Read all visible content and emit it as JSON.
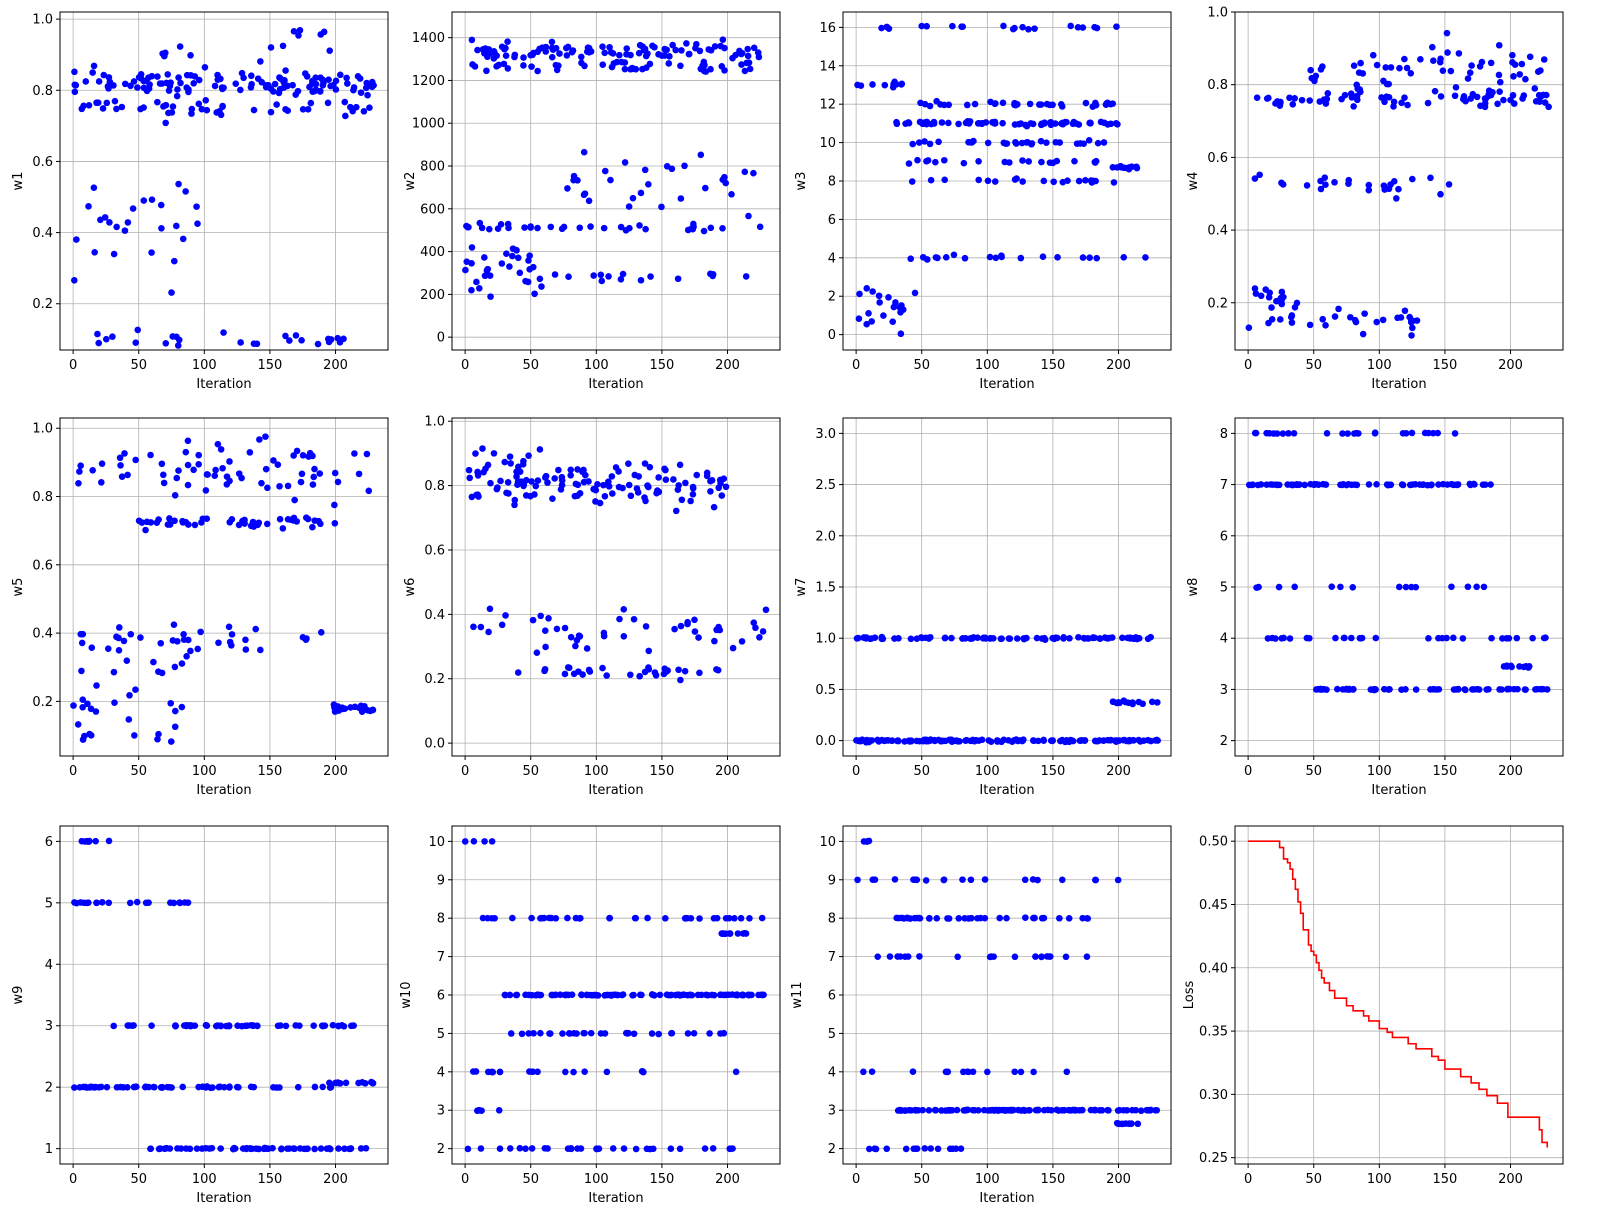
{
  "figure": {
    "rows": 3,
    "cols": 4,
    "point_color": "#0000ff",
    "line_color": "#ff0000",
    "grid_color": "#b0b0b0",
    "grid": true
  },
  "chart_data": [
    {
      "type": "scatter",
      "xlabel": "Iteration",
      "ylabel": "w1",
      "xlim": [
        -10,
        240
      ],
      "ylim": [
        0.07,
        1.02
      ],
      "xticks": [
        0,
        50,
        100,
        150,
        200
      ],
      "yticks": [
        0.2,
        0.4,
        0.6,
        0.8,
        1.0
      ],
      "ytick_labels": [
        "0.2",
        "0.4",
        "0.6",
        "0.8",
        "1.0"
      ],
      "clusters": [
        {
          "x_range": [
            0,
            230
          ],
          "y_center": 0.82,
          "y_spread": 0.015,
          "count": 110
        },
        {
          "x_range": [
            5,
            230
          ],
          "y_center": 0.75,
          "y_spread": 0.01,
          "count": 45
        },
        {
          "x_range": [
            10,
            200
          ],
          "y_center": 0.88,
          "y_spread": 0.04,
          "count": 20
        },
        {
          "x_range": [
            0,
            95
          ],
          "y_center": 0.45,
          "y_spread": 0.12,
          "count": 28
        },
        {
          "x_range": [
            0,
            220
          ],
          "y_center": 0.1,
          "y_spread": 0.01,
          "count": 26
        },
        {
          "x_range": [
            100,
            200
          ],
          "y_center": 0.96,
          "y_spread": 0.01,
          "count": 4
        }
      ]
    },
    {
      "type": "scatter",
      "xlabel": "Iteration",
      "ylabel": "w2",
      "xlim": [
        -10,
        240
      ],
      "ylim": [
        -60,
        1520
      ],
      "xticks": [
        0,
        50,
        100,
        150,
        200
      ],
      "yticks": [
        0,
        200,
        400,
        600,
        800,
        1000,
        1200,
        1400
      ],
      "ytick_labels": [
        "0",
        "200",
        "400",
        "600",
        "800",
        "1000",
        "1200",
        "1400"
      ],
      "clusters": [
        {
          "x_range": [
            5,
            230
          ],
          "y_center": 1335,
          "y_spread": 20,
          "count": 100
        },
        {
          "x_range": [
            5,
            230
          ],
          "y_center": 1260,
          "y_spread": 15,
          "count": 40
        },
        {
          "x_range": [
            0,
            60
          ],
          "y_center": 310,
          "y_spread": 50,
          "count": 30
        },
        {
          "x_range": [
            0,
            60
          ],
          "y_center": 510,
          "y_spread": 10,
          "count": 15
        },
        {
          "x_range": [
            60,
            225
          ],
          "y_center": 720,
          "y_spread": 60,
          "count": 30
        },
        {
          "x_range": [
            55,
            225
          ],
          "y_center": 510,
          "y_spread": 10,
          "count": 20
        },
        {
          "x_range": [
            65,
            215
          ],
          "y_center": 285,
          "y_spread": 20,
          "count": 15
        }
      ]
    },
    {
      "type": "scatter",
      "xlabel": "Iteration",
      "ylabel": "w3",
      "xlim": [
        -10,
        240
      ],
      "ylim": [
        -0.8,
        16.8
      ],
      "xticks": [
        0,
        50,
        100,
        150,
        200
      ],
      "yticks": [
        0,
        2,
        4,
        6,
        8,
        10,
        12,
        14,
        16
      ],
      "ytick_labels": [
        "0",
        "2",
        "4",
        "6",
        "8",
        "10",
        "12",
        "14",
        "16"
      ],
      "clusters": [
        {
          "x_range": [
            30,
            200
          ],
          "y_center": 11,
          "y_spread": 0.05,
          "count": 70
        },
        {
          "x_range": [
            45,
            200
          ],
          "y_center": 12,
          "y_spread": 0.05,
          "count": 35
        },
        {
          "x_range": [
            40,
            200
          ],
          "y_center": 10,
          "y_spread": 0.05,
          "count": 30
        },
        {
          "x_range": [
            40,
            200
          ],
          "y_center": 8,
          "y_spread": 0.05,
          "count": 20
        },
        {
          "x_range": [
            40,
            200
          ],
          "y_center": 9,
          "y_spread": 0.05,
          "count": 20
        },
        {
          "x_range": [
            0,
            220
          ],
          "y_center": 16,
          "y_spread": 0.05,
          "count": 20
        },
        {
          "x_range": [
            0,
            40
          ],
          "y_center": 13,
          "y_spread": 0.1,
          "count": 10
        },
        {
          "x_range": [
            0,
            45
          ],
          "y_center": 1.5,
          "y_spread": 0.6,
          "count": 20
        },
        {
          "x_range": [
            40,
            230
          ],
          "y_center": 4,
          "y_spread": 0.05,
          "count": 20
        },
        {
          "x_range": [
            195,
            215
          ],
          "y_center": 8.7,
          "y_spread": 0.05,
          "count": 12
        }
      ]
    },
    {
      "type": "scatter",
      "xlabel": "Iteration",
      "ylabel": "w4",
      "xlim": [
        -10,
        240
      ],
      "ylim": [
        0.07,
        1.0
      ],
      "xticks": [
        0,
        50,
        100,
        150,
        200
      ],
      "yticks": [
        0.2,
        0.4,
        0.6,
        0.8,
        1.0
      ],
      "ytick_labels": [
        "0.2",
        "0.4",
        "0.6",
        "0.8",
        "1.0"
      ],
      "clusters": [
        {
          "x_range": [
            5,
            230
          ],
          "y_center": 0.76,
          "y_spread": 0.01,
          "count": 70
        },
        {
          "x_range": [
            30,
            230
          ],
          "y_center": 0.84,
          "y_spread": 0.04,
          "count": 60
        },
        {
          "x_range": [
            0,
            160
          ],
          "y_center": 0.53,
          "y_spread": 0.015,
          "count": 25
        },
        {
          "x_range": [
            0,
            130
          ],
          "y_center": 0.15,
          "y_spread": 0.02,
          "count": 30
        },
        {
          "x_range": [
            0,
            40
          ],
          "y_center": 0.22,
          "y_spread": 0.02,
          "count": 15
        }
      ]
    },
    {
      "type": "scatter",
      "xlabel": "Iteration",
      "ylabel": "w5",
      "xlim": [
        -10,
        240
      ],
      "ylim": [
        0.04,
        1.03
      ],
      "xticks": [
        0,
        50,
        100,
        150,
        200
      ],
      "yticks": [
        0.2,
        0.4,
        0.6,
        0.8,
        1.0
      ],
      "ytick_labels": [
        "0.2",
        "0.4",
        "0.6",
        "0.8",
        "1.0"
      ],
      "clusters": [
        {
          "x_range": [
            0,
            230
          ],
          "y_center": 0.88,
          "y_spread": 0.04,
          "count": 70
        },
        {
          "x_range": [
            50,
            200
          ],
          "y_center": 0.72,
          "y_spread": 0.01,
          "count": 45
        },
        {
          "x_range": [
            0,
            200
          ],
          "y_center": 0.38,
          "y_spread": 0.02,
          "count": 35
        },
        {
          "x_range": [
            0,
            90
          ],
          "y_center": 0.22,
          "y_spread": 0.08,
          "count": 25
        },
        {
          "x_range": [
            195,
            230
          ],
          "y_center": 0.18,
          "y_spread": 0.005,
          "count": 20
        },
        {
          "x_range": [
            0,
            80
          ],
          "y_center": 0.09,
          "y_spread": 0.01,
          "count": 8
        }
      ]
    },
    {
      "type": "scatter",
      "xlabel": "Iteration",
      "ylabel": "w6",
      "xlim": [
        -10,
        240
      ],
      "ylim": [
        -0.04,
        1.01
      ],
      "xticks": [
        0,
        50,
        100,
        150,
        200
      ],
      "yticks": [
        0.0,
        0.2,
        0.4,
        0.6,
        0.8,
        1.0
      ],
      "ytick_labels": [
        "0.0",
        "0.2",
        "0.4",
        "0.6",
        "0.8",
        "1.0"
      ],
      "clusters": [
        {
          "x_range": [
            0,
            200
          ],
          "y_center": 0.8,
          "y_spread": 0.03,
          "count": 110
        },
        {
          "x_range": [
            0,
            60
          ],
          "y_center": 0.85,
          "y_spread": 0.05,
          "count": 20
        },
        {
          "x_range": [
            50,
            230
          ],
          "y_center": 0.35,
          "y_spread": 0.03,
          "count": 40
        },
        {
          "x_range": [
            40,
            200
          ],
          "y_center": 0.22,
          "y_spread": 0.01,
          "count": 30
        },
        {
          "x_range": [
            0,
            40
          ],
          "y_center": 0.35,
          "y_spread": 0.03,
          "count": 6
        }
      ]
    },
    {
      "type": "scatter",
      "xlabel": "Iteration",
      "ylabel": "w7",
      "xlim": [
        -10,
        240
      ],
      "ylim": [
        -0.15,
        3.15
      ],
      "xticks": [
        0,
        50,
        100,
        150,
        200
      ],
      "yticks": [
        0.0,
        0.5,
        1.0,
        1.5,
        2.0,
        2.5,
        3.0
      ],
      "ytick_labels": [
        "0.0",
        "0.5",
        "1.0",
        "1.5",
        "2.0",
        "2.5",
        "3.0"
      ],
      "clusters": [
        {
          "x_range": [
            0,
            230
          ],
          "y_center": 0.0,
          "y_spread": 0.005,
          "count": 140
        },
        {
          "x_range": [
            0,
            225
          ],
          "y_center": 1.0,
          "y_spread": 0.005,
          "count": 90
        },
        {
          "x_range": [
            195,
            230
          ],
          "y_center": 0.37,
          "y_spread": 0.01,
          "count": 14
        }
      ]
    },
    {
      "type": "scatter",
      "xlabel": "Iteration",
      "ylabel": "w8",
      "xlim": [
        -10,
        240
      ],
      "ylim": [
        1.7,
        8.3
      ],
      "xticks": [
        0,
        50,
        100,
        150,
        200
      ],
      "yticks": [
        2,
        3,
        4,
        5,
        6,
        7,
        8
      ],
      "ytick_labels": [
        "2",
        "3",
        "4",
        "5",
        "6",
        "7",
        "8"
      ],
      "clusters": [
        {
          "x_range": [
            0,
            190
          ],
          "y_center": 7.0,
          "y_spread": 0.005,
          "count": 70
        },
        {
          "x_range": [
            0,
            160
          ],
          "y_center": 8.0,
          "y_spread": 0.005,
          "count": 25
        },
        {
          "x_range": [
            50,
            230
          ],
          "y_center": 3.0,
          "y_spread": 0.005,
          "count": 60
        },
        {
          "x_range": [
            10,
            230
          ],
          "y_center": 4.0,
          "y_spread": 0.005,
          "count": 30
        },
        {
          "x_range": [
            0,
            180
          ],
          "y_center": 5.0,
          "y_spread": 0.005,
          "count": 15
        },
        {
          "x_range": [
            195,
            215
          ],
          "y_center": 3.45,
          "y_spread": 0.01,
          "count": 12
        }
      ]
    },
    {
      "type": "scatter",
      "xlabel": "Iteration",
      "ylabel": "w9",
      "xlim": [
        -10,
        240
      ],
      "ylim": [
        0.75,
        6.25
      ],
      "xticks": [
        0,
        50,
        100,
        150,
        200
      ],
      "yticks": [
        1,
        2,
        3,
        4,
        5,
        6
      ],
      "ytick_labels": [
        "1",
        "2",
        "3",
        "4",
        "5",
        "6"
      ],
      "clusters": [
        {
          "x_range": [
            0,
            200
          ],
          "y_center": 2.0,
          "y_spread": 0.005,
          "count": 60
        },
        {
          "x_range": [
            30,
            215
          ],
          "y_center": 3.0,
          "y_spread": 0.005,
          "count": 50
        },
        {
          "x_range": [
            55,
            225
          ],
          "y_center": 1.0,
          "y_spread": 0.005,
          "count": 60
        },
        {
          "x_range": [
            0,
            90
          ],
          "y_center": 5.0,
          "y_spread": 0.005,
          "count": 20
        },
        {
          "x_range": [
            5,
            30
          ],
          "y_center": 6.0,
          "y_spread": 0.005,
          "count": 8
        },
        {
          "x_range": [
            195,
            230
          ],
          "y_center": 2.07,
          "y_spread": 0.005,
          "count": 14
        }
      ]
    },
    {
      "type": "scatter",
      "xlabel": "Iteration",
      "ylabel": "w10",
      "xlim": [
        -10,
        240
      ],
      "ylim": [
        1.6,
        10.4
      ],
      "xticks": [
        0,
        50,
        100,
        150,
        200
      ],
      "yticks": [
        2,
        3,
        4,
        5,
        6,
        7,
        8,
        9,
        10
      ],
      "ytick_labels": [
        "2",
        "3",
        "4",
        "5",
        "6",
        "7",
        "8",
        "9",
        "10"
      ],
      "clusters": [
        {
          "x_range": [
            25,
            230
          ],
          "y_center": 6.0,
          "y_spread": 0.005,
          "count": 100
        },
        {
          "x_range": [
            0,
            230
          ],
          "y_center": 8.0,
          "y_spread": 0.005,
          "count": 35
        },
        {
          "x_range": [
            30,
            200
          ],
          "y_center": 5.0,
          "y_spread": 0.005,
          "count": 30
        },
        {
          "x_range": [
            0,
            220
          ],
          "y_center": 4.0,
          "y_spread": 0.005,
          "count": 20
        },
        {
          "x_range": [
            0,
            215
          ],
          "y_center": 2.0,
          "y_spread": 0.005,
          "count": 30
        },
        {
          "x_range": [
            195,
            215
          ],
          "y_center": 7.6,
          "y_spread": 0.005,
          "count": 12
        },
        {
          "x_range": [
            0,
            30
          ],
          "y_center": 10.0,
          "y_spread": 0.005,
          "count": 4
        },
        {
          "x_range": [
            5,
            30
          ],
          "y_center": 3.0,
          "y_spread": 0.005,
          "count": 5
        }
      ]
    },
    {
      "type": "scatter",
      "xlabel": "Iteration",
      "ylabel": "w11",
      "xlim": [
        -10,
        240
      ],
      "ylim": [
        1.6,
        10.4
      ],
      "xticks": [
        0,
        50,
        100,
        150,
        200
      ],
      "yticks": [
        2,
        3,
        4,
        5,
        6,
        7,
        8,
        9,
        10
      ],
      "ytick_labels": [
        "2",
        "3",
        "4",
        "5",
        "6",
        "7",
        "8",
        "9",
        "10"
      ],
      "clusters": [
        {
          "x_range": [
            30,
            230
          ],
          "y_center": 3.0,
          "y_spread": 0.005,
          "count": 110
        },
        {
          "x_range": [
            20,
            180
          ],
          "y_center": 8.0,
          "y_spread": 0.005,
          "count": 35
        },
        {
          "x_range": [
            0,
            225
          ],
          "y_center": 9.0,
          "y_spread": 0.005,
          "count": 20
        },
        {
          "x_range": [
            0,
            180
          ],
          "y_center": 7.0,
          "y_spread": 0.005,
          "count": 20
        },
        {
          "x_range": [
            0,
            195
          ],
          "y_center": 4.0,
          "y_spread": 0.005,
          "count": 15
        },
        {
          "x_range": [
            0,
            100
          ],
          "y_center": 2.0,
          "y_spread": 0.005,
          "count": 15
        },
        {
          "x_range": [
            195,
            215
          ],
          "y_center": 2.65,
          "y_spread": 0.005,
          "count": 12
        },
        {
          "x_range": [
            0,
            15
          ],
          "y_center": 10.0,
          "y_spread": 0.005,
          "count": 4
        }
      ]
    },
    {
      "type": "line",
      "xlabel": "",
      "ylabel": "Loss",
      "xlim": [
        -10,
        240
      ],
      "ylim": [
        0.245,
        0.512
      ],
      "xticks": [
        0,
        50,
        100,
        150,
        200
      ],
      "yticks": [
        0.25,
        0.3,
        0.35,
        0.4,
        0.45,
        0.5
      ],
      "ytick_labels": [
        "0.25",
        "0.30",
        "0.35",
        "0.40",
        "0.45",
        "0.50"
      ],
      "step": true,
      "x": [
        0,
        24,
        27,
        30,
        32,
        34,
        36,
        38,
        40,
        42,
        44,
        46,
        48,
        50,
        52,
        54,
        56,
        58,
        62,
        66,
        70,
        75,
        80,
        88,
        92,
        100,
        106,
        110,
        122,
        128,
        140,
        145,
        150,
        158,
        162,
        170,
        176,
        182,
        190,
        198,
        220,
        222,
        224,
        228
      ],
      "y": [
        0.5,
        0.495,
        0.486,
        0.483,
        0.478,
        0.47,
        0.462,
        0.452,
        0.443,
        0.43,
        0.43,
        0.418,
        0.413,
        0.41,
        0.404,
        0.398,
        0.392,
        0.388,
        0.382,
        0.376,
        0.376,
        0.37,
        0.366,
        0.362,
        0.358,
        0.352,
        0.349,
        0.345,
        0.34,
        0.336,
        0.33,
        0.327,
        0.32,
        0.32,
        0.314,
        0.309,
        0.304,
        0.299,
        0.293,
        0.282,
        0.282,
        0.272,
        0.262,
        0.258
      ]
    }
  ]
}
